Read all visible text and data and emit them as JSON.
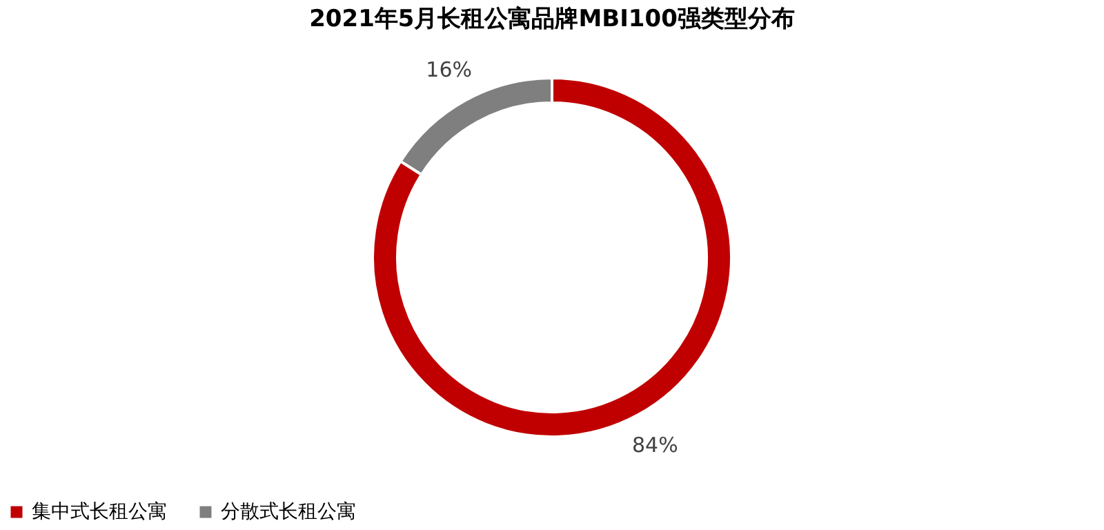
{
  "chart_data": {
    "type": "donut",
    "title": "2021年5月长租公寓品牌MBI100强类型分布",
    "categories": [
      "集中式长租公寓",
      "分散式长租公寓"
    ],
    "values": [
      84,
      16
    ],
    "colors": [
      "#c00000",
      "#7f7f7f"
    ],
    "value_labels": [
      "84%",
      "16%"
    ],
    "legend": "bottom"
  }
}
